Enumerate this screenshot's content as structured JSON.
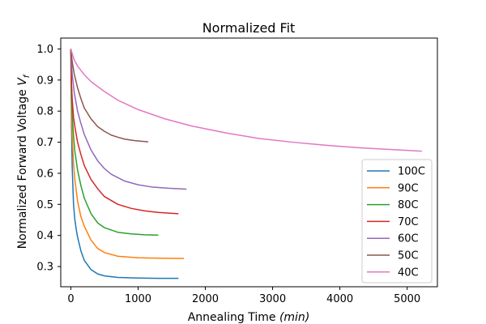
{
  "chart_data": {
    "type": "line",
    "title": "Normalized Fit",
    "xlabel_main": "Annealing Time ",
    "xlabel_unit": "min",
    "ylabel_main": "Normalized Forward Voltage ",
    "ylabel_var": "V",
    "ylabel_sub": "f",
    "xlim": [
      -150,
      5450
    ],
    "ylim": [
      0.235,
      1.035
    ],
    "xticks": [
      0,
      1000,
      2000,
      3000,
      4000,
      5000
    ],
    "yticks": [
      0.3,
      0.4,
      0.5,
      0.6,
      0.7,
      0.8,
      0.9,
      1.0
    ],
    "xtick_labels": [
      "0",
      "1000",
      "2000",
      "3000",
      "4000",
      "5000"
    ],
    "ytick_labels": [
      "0.3",
      "0.4",
      "0.5",
      "0.6",
      "0.7",
      "0.8",
      "0.9",
      "1.0"
    ],
    "legend_position": "lower-right",
    "grid": false,
    "series": [
      {
        "name": "100C",
        "color": "#1f77b4",
        "x": [
          0,
          10,
          20,
          40,
          60,
          80,
          100,
          150,
          200,
          300,
          400,
          500,
          700,
          1000,
          1300,
          1600
        ],
        "y": [
          1.0,
          0.75,
          0.62,
          0.5,
          0.45,
          0.42,
          0.395,
          0.35,
          0.32,
          0.29,
          0.276,
          0.27,
          0.265,
          0.263,
          0.262,
          0.262
        ]
      },
      {
        "name": "90C",
        "color": "#ff7f0e",
        "x": [
          0,
          10,
          20,
          40,
          60,
          100,
          150,
          200,
          300,
          400,
          500,
          700,
          1000,
          1300,
          1680
        ],
        "y": [
          1.0,
          0.8,
          0.72,
          0.63,
          0.58,
          0.51,
          0.46,
          0.43,
          0.385,
          0.358,
          0.345,
          0.333,
          0.328,
          0.327,
          0.326
        ]
      },
      {
        "name": "80C",
        "color": "#2ca02c",
        "x": [
          0,
          10,
          20,
          40,
          60,
          100,
          150,
          200,
          300,
          400,
          500,
          700,
          900,
          1100,
          1300
        ],
        "y": [
          1.0,
          0.85,
          0.79,
          0.72,
          0.67,
          0.61,
          0.56,
          0.52,
          0.47,
          0.44,
          0.425,
          0.41,
          0.405,
          0.402,
          0.401
        ]
      },
      {
        "name": "70C",
        "color": "#d62728",
        "x": [
          0,
          10,
          20,
          40,
          60,
          100,
          150,
          200,
          300,
          400,
          500,
          700,
          900,
          1100,
          1300,
          1600
        ],
        "y": [
          1.0,
          0.89,
          0.84,
          0.78,
          0.75,
          0.7,
          0.66,
          0.625,
          0.58,
          0.55,
          0.525,
          0.5,
          0.487,
          0.479,
          0.474,
          0.47
        ]
      },
      {
        "name": "60C",
        "color": "#9467bd",
        "x": [
          0,
          20,
          50,
          100,
          150,
          200,
          300,
          400,
          500,
          600,
          800,
          1000,
          1200,
          1450,
          1720
        ],
        "y": [
          1.0,
          0.92,
          0.86,
          0.8,
          0.76,
          0.725,
          0.675,
          0.64,
          0.615,
          0.597,
          0.575,
          0.563,
          0.556,
          0.552,
          0.549
        ]
      },
      {
        "name": "50C",
        "color": "#8c564b",
        "x": [
          0,
          20,
          50,
          100,
          150,
          200,
          300,
          400,
          500,
          600,
          700,
          800,
          950,
          1150
        ],
        "y": [
          1.0,
          0.96,
          0.92,
          0.875,
          0.84,
          0.81,
          0.775,
          0.75,
          0.735,
          0.723,
          0.716,
          0.71,
          0.705,
          0.701
        ]
      },
      {
        "name": "40C",
        "color": "#e377c2",
        "x": [
          0,
          50,
          100,
          200,
          300,
          500,
          700,
          1000,
          1400,
          1800,
          2300,
          2800,
          3300,
          3800,
          4300,
          4800,
          5220
        ],
        "y": [
          1.0,
          0.965,
          0.945,
          0.917,
          0.895,
          0.863,
          0.835,
          0.805,
          0.775,
          0.752,
          0.73,
          0.712,
          0.7,
          0.69,
          0.682,
          0.676,
          0.671
        ]
      }
    ]
  }
}
